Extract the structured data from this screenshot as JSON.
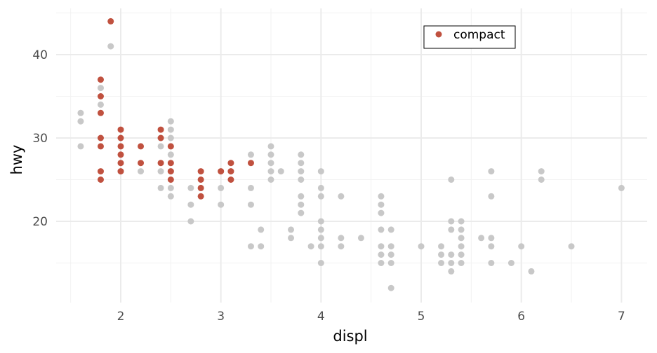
{
  "chart_data": {
    "type": "scatter",
    "title": "",
    "xlabel": "displ",
    "ylabel": "hwy",
    "xlim": [
      1.5,
      7.25
    ],
    "ylim": [
      10.5,
      45.5
    ],
    "xticks": [
      2,
      3,
      4,
      5,
      6,
      7
    ],
    "yticks": [
      20,
      30,
      40
    ],
    "grid": true,
    "legend_position": "top-right",
    "colors": {
      "highlight": "#c0513f",
      "background_points": "#c8c8c8"
    },
    "series": [
      {
        "name": "",
        "color": "#c8c8c8",
        "points": [
          [
            1.6,
            33
          ],
          [
            1.6,
            32
          ],
          [
            1.6,
            29
          ],
          [
            1.8,
            36
          ],
          [
            1.8,
            34
          ],
          [
            1.9,
            41
          ],
          [
            2.0,
            26
          ],
          [
            2.2,
            26
          ],
          [
            2.4,
            24
          ],
          [
            2.4,
            26
          ],
          [
            2.4,
            29
          ],
          [
            2.4,
            30
          ],
          [
            2.5,
            32
          ],
          [
            2.5,
            31
          ],
          [
            2.5,
            30
          ],
          [
            2.5,
            29
          ],
          [
            2.5,
            28
          ],
          [
            2.5,
            26
          ],
          [
            2.5,
            24
          ],
          [
            2.5,
            23
          ],
          [
            2.7,
            24
          ],
          [
            2.7,
            22
          ],
          [
            2.7,
            20
          ],
          [
            2.8,
            24
          ],
          [
            3.0,
            26
          ],
          [
            3.0,
            24
          ],
          [
            3.0,
            22
          ],
          [
            3.1,
            26
          ],
          [
            3.3,
            28
          ],
          [
            3.3,
            24
          ],
          [
            3.3,
            22
          ],
          [
            3.3,
            17
          ],
          [
            3.4,
            19
          ],
          [
            3.4,
            17
          ],
          [
            3.5,
            29
          ],
          [
            3.5,
            28
          ],
          [
            3.5,
            27
          ],
          [
            3.5,
            26
          ],
          [
            3.5,
            25
          ],
          [
            3.6,
            26
          ],
          [
            3.7,
            19
          ],
          [
            3.7,
            18
          ],
          [
            3.8,
            28
          ],
          [
            3.8,
            27
          ],
          [
            3.8,
            26
          ],
          [
            3.8,
            25
          ],
          [
            3.8,
            23
          ],
          [
            3.8,
            22
          ],
          [
            3.8,
            21
          ],
          [
            3.9,
            17
          ],
          [
            4.0,
            26
          ],
          [
            4.0,
            24
          ],
          [
            4.0,
            23
          ],
          [
            4.0,
            20
          ],
          [
            4.0,
            19
          ],
          [
            4.0,
            18
          ],
          [
            4.0,
            17
          ],
          [
            4.0,
            15
          ],
          [
            4.2,
            23
          ],
          [
            4.2,
            18
          ],
          [
            4.2,
            17
          ],
          [
            4.4,
            18
          ],
          [
            4.6,
            23
          ],
          [
            4.6,
            22
          ],
          [
            4.6,
            21
          ],
          [
            4.6,
            19
          ],
          [
            4.6,
            17
          ],
          [
            4.6,
            16
          ],
          [
            4.6,
            15
          ],
          [
            4.7,
            19
          ],
          [
            4.7,
            17
          ],
          [
            4.7,
            16
          ],
          [
            4.7,
            15
          ],
          [
            4.7,
            12
          ],
          [
            5.0,
            17
          ],
          [
            5.2,
            17
          ],
          [
            5.2,
            16
          ],
          [
            5.2,
            15
          ],
          [
            5.3,
            25
          ],
          [
            5.3,
            20
          ],
          [
            5.3,
            19
          ],
          [
            5.3,
            16
          ],
          [
            5.3,
            15
          ],
          [
            5.3,
            14
          ],
          [
            5.4,
            20
          ],
          [
            5.4,
            19
          ],
          [
            5.4,
            18
          ],
          [
            5.4,
            17
          ],
          [
            5.4,
            16
          ],
          [
            5.4,
            15
          ],
          [
            5.6,
            18
          ],
          [
            5.7,
            26
          ],
          [
            5.7,
            23
          ],
          [
            5.7,
            18
          ],
          [
            5.7,
            17
          ],
          [
            5.7,
            15
          ],
          [
            5.9,
            15
          ],
          [
            6.0,
            17
          ],
          [
            6.1,
            14
          ],
          [
            6.2,
            26
          ],
          [
            6.2,
            25
          ],
          [
            6.5,
            17
          ],
          [
            7.0,
            24
          ]
        ]
      },
      {
        "name": "compact",
        "color": "#c0513f",
        "points": [
          [
            1.8,
            37
          ],
          [
            1.8,
            35
          ],
          [
            1.8,
            33
          ],
          [
            1.8,
            30
          ],
          [
            1.8,
            29
          ],
          [
            1.8,
            26
          ],
          [
            1.8,
            25
          ],
          [
            1.9,
            44
          ],
          [
            2.0,
            31
          ],
          [
            2.0,
            30
          ],
          [
            2.0,
            29
          ],
          [
            2.0,
            28
          ],
          [
            2.0,
            27
          ],
          [
            2.0,
            26
          ],
          [
            2.2,
            29
          ],
          [
            2.2,
            27
          ],
          [
            2.4,
            31
          ],
          [
            2.4,
            30
          ],
          [
            2.4,
            27
          ],
          [
            2.5,
            29
          ],
          [
            2.5,
            27
          ],
          [
            2.5,
            26
          ],
          [
            2.5,
            25
          ],
          [
            2.8,
            26
          ],
          [
            2.8,
            25
          ],
          [
            2.8,
            24
          ],
          [
            2.8,
            23
          ],
          [
            3.0,
            26
          ],
          [
            3.1,
            27
          ],
          [
            3.1,
            26
          ],
          [
            3.1,
            25
          ],
          [
            3.3,
            27
          ]
        ]
      }
    ]
  },
  "legend": {
    "label": "compact"
  }
}
